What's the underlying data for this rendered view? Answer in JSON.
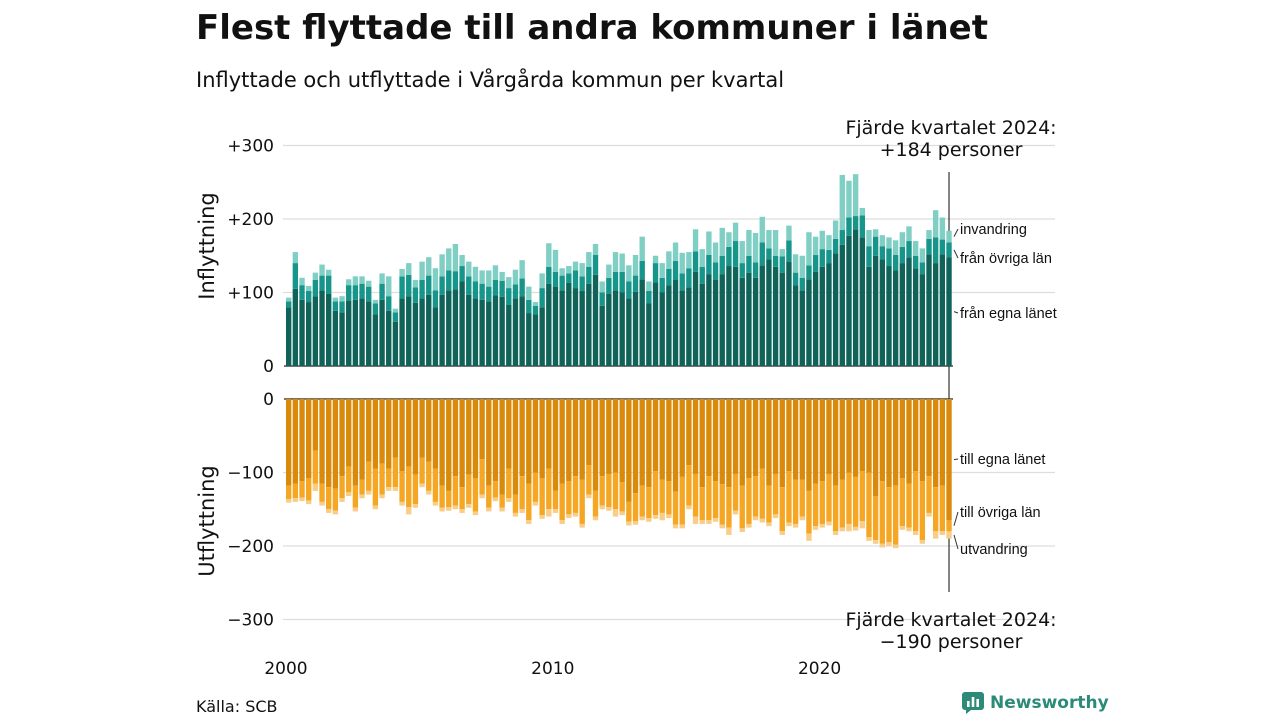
{
  "header": {
    "title": "Flest flyttade till andra kommuner i länet",
    "subtitle": "Inflyttade och utflyttade i Vårgårda kommun per kvartal"
  },
  "footer": {
    "source": "Källa: SCB",
    "brand": "Newsworthy",
    "brand_icon": "newsworthy-chart-icon"
  },
  "colors": {
    "in_own_county": "#0f6358",
    "in_other_counties": "#16958a",
    "in_immigration": "#7fcfc5",
    "out_own_county": "#da8a0a",
    "out_other_counties": "#f5a623",
    "out_emigration": "#f8cd88",
    "grid": "#dddddd",
    "brand": "#2b8a78"
  },
  "chart_data": {
    "type": "bar",
    "stacked": true,
    "x_start": "2000 Q1",
    "x_end": "2024 Q4",
    "x_ticks": [
      "2000",
      "2010",
      "2020"
    ],
    "panels": [
      {
        "name": "Inflyttning",
        "ylabel": "Inflyttning",
        "ylim": [
          0,
          300
        ],
        "y_ticks": [
          "0",
          "+100",
          "+200",
          "+300"
        ],
        "series_labels": [
          "från egna länet",
          "från övriga län",
          "invandring"
        ],
        "annotation_line1": "Fjärde kvartalet 2024:",
        "annotation_line2": "+184 personer",
        "annotation_position": "top-right",
        "own_county": [
          80,
          105,
          90,
          87,
          95,
          103,
          98,
          75,
          73,
          89,
          90,
          92,
          88,
          70,
          90,
          75,
          60,
          92,
          95,
          86,
          92,
          97,
          80,
          97,
          103,
          104,
          115,
          97,
          92,
          90,
          88,
          96,
          94,
          83,
          92,
          95,
          72,
          70,
          80,
          112,
          108,
          103,
          113,
          106,
          102,
          112,
          124,
          82,
          98,
          103,
          100,
          92,
          101,
          118,
          85,
          114,
          100,
          110,
          117,
          103,
          107,
          128,
          112,
          125,
          117,
          125,
          136,
          135,
          120,
          127,
          120,
          137,
          145,
          135,
          127,
          142,
          110,
          103,
          118,
          128,
          135,
          140,
          153,
          165,
          177,
          186,
          175,
          135,
          150,
          145,
          136,
          130,
          140,
          148,
          133,
          125,
          152,
          140,
          152,
          148
        ],
        "other_counties": [
          8,
          35,
          20,
          15,
          22,
          20,
          25,
          13,
          15,
          21,
          20,
          20,
          20,
          15,
          22,
          20,
          13,
          30,
          29,
          21,
          25,
          26,
          23,
          25,
          27,
          25,
          21,
          25,
          23,
          22,
          20,
          21,
          22,
          23,
          19,
          24,
          18,
          12,
          26,
          23,
          20,
          20,
          13,
          24,
          20,
          23,
          27,
          18,
          22,
          25,
          28,
          23,
          22,
          25,
          17,
          26,
          20,
          22,
          26,
          23,
          26,
          28,
          23,
          26,
          24,
          25,
          26,
          35,
          20,
          23,
          21,
          31,
          15,
          15,
          22,
          29,
          17,
          17,
          19,
          23,
          24,
          18,
          20,
          20,
          25,
          18,
          30,
          28,
          26,
          18,
          24,
          21,
          22,
          22,
          17,
          16,
          21,
          35,
          20,
          20
        ],
        "immigration": [
          5,
          15,
          10,
          7,
          10,
          15,
          8,
          5,
          7,
          8,
          12,
          10,
          8,
          5,
          14,
          27,
          5,
          10,
          16,
          10,
          25,
          25,
          30,
          30,
          30,
          37,
          15,
          20,
          20,
          18,
          22,
          20,
          12,
          15,
          20,
          25,
          18,
          5,
          20,
          32,
          30,
          10,
          10,
          12,
          18,
          20,
          15,
          15,
          18,
          27,
          25,
          22,
          28,
          33,
          13,
          10,
          20,
          24,
          25,
          28,
          22,
          30,
          24,
          32,
          27,
          38,
          20,
          25,
          30,
          35,
          40,
          35,
          25,
          35,
          10,
          20,
          25,
          30,
          45,
          25,
          25,
          20,
          25,
          75,
          50,
          57,
          10,
          22,
          10,
          15,
          15,
          20,
          20,
          20,
          20,
          19,
          12,
          37,
          30,
          16
        ]
      },
      {
        "name": "Utflyttning",
        "ylabel": "Utflyttning",
        "ylim": [
          -300,
          0
        ],
        "y_ticks": [
          "0",
          "−100",
          "−200",
          "−300"
        ],
        "series_labels": [
          "till egna länet",
          "till övriga län",
          "utvandring"
        ],
        "annotation_line1": "Fjärde kvartalet 2024:",
        "annotation_line2": "−190 personer",
        "annotation_position": "bottom-right",
        "own_county": [
          118,
          115,
          112,
          108,
          70,
          115,
          120,
          122,
          105,
          92,
          118,
          110,
          85,
          95,
          88,
          95,
          80,
          98,
          92,
          103,
          80,
          85,
          95,
          118,
          125,
          105,
          120,
          103,
          108,
          82,
          118,
          112,
          130,
          95,
          130,
          105,
          115,
          100,
          108,
          95,
          125,
          115,
          112,
          105,
          110,
          90,
          125,
          105,
          102,
          100,
          113,
          140,
          128,
          118,
          120,
          98,
          110,
          112,
          126,
          106,
          90,
          102,
          120,
          105,
          112,
          116,
          120,
          102,
          118,
          108,
          105,
          95,
          118,
          102,
          120,
          98,
          110,
          110,
          125,
          115,
          112,
          102,
          118,
          110,
          100,
          106,
          98,
          100,
          132,
          112,
          120,
          118,
          108,
          115,
          98,
          112,
          105,
          120,
          118,
          165
        ],
        "other_counties": [
          18,
          20,
          22,
          30,
          45,
          25,
          30,
          30,
          30,
          35,
          30,
          20,
          40,
          50,
          42,
          25,
          40,
          42,
          55,
          40,
          35,
          40,
          45,
          30,
          22,
          40,
          30,
          40,
          45,
          48,
          30,
          22,
          18,
          40,
          25,
          45,
          50,
          40,
          50,
          55,
          25,
          50,
          45,
          50,
          60,
          40,
          35,
          40,
          45,
          50,
          40,
          27,
          38,
          42,
          42,
          60,
          45,
          45,
          45,
          65,
          55,
          58,
          45,
          60,
          50,
          55,
          55,
          50,
          58,
          62,
          55,
          68,
          50,
          55,
          60,
          70,
          60,
          50,
          58,
          58,
          58,
          65,
          62,
          65,
          70,
          68,
          68,
          88,
          60,
          85,
          75,
          80,
          65,
          60,
          82,
          80,
          50,
          60,
          62,
          15
        ],
        "emigration": [
          5,
          5,
          5,
          5,
          10,
          5,
          5,
          5,
          5,
          5,
          5,
          5,
          5,
          5,
          5,
          5,
          5,
          5,
          10,
          5,
          5,
          5,
          5,
          5,
          5,
          5,
          5,
          5,
          5,
          5,
          5,
          5,
          5,
          5,
          5,
          5,
          5,
          5,
          5,
          10,
          5,
          5,
          5,
          5,
          5,
          5,
          5,
          5,
          5,
          10,
          5,
          5,
          5,
          5,
          5,
          5,
          10,
          5,
          5,
          5,
          5,
          10,
          5,
          5,
          5,
          5,
          10,
          5,
          5,
          5,
          5,
          5,
          5,
          5,
          5,
          5,
          5,
          5,
          10,
          5,
          5,
          5,
          5,
          5,
          10,
          5,
          10,
          5,
          5,
          5,
          5,
          5,
          5,
          5,
          5,
          5,
          5,
          10,
          5,
          10
        ]
      }
    ]
  }
}
